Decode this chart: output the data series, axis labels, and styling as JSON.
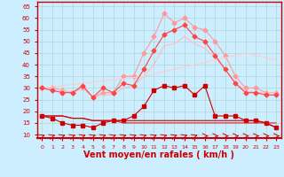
{
  "background_color": "#cceeff",
  "grid_color": "#aacccc",
  "xlabel": "Vent moyen/en rafales ( km/h )",
  "xlabel_color": "#cc0000",
  "xlabel_fontsize": 7,
  "yticks": [
    10,
    15,
    20,
    25,
    30,
    35,
    40,
    45,
    50,
    55,
    60,
    65
  ],
  "xticks": [
    0,
    1,
    2,
    3,
    4,
    5,
    6,
    7,
    8,
    9,
    10,
    11,
    12,
    13,
    14,
    15,
    16,
    17,
    18,
    19,
    20,
    21,
    22,
    23
  ],
  "ylim": [
    8.5,
    67
  ],
  "xlim": [
    -0.5,
    23.5
  ],
  "pink_rafales": [
    30,
    30,
    29,
    28,
    30,
    26,
    28,
    28,
    35,
    35,
    45,
    52,
    62,
    58,
    60,
    56,
    55,
    50,
    44,
    35,
    30,
    30,
    28,
    28
  ],
  "pink_linear": [
    30,
    30.5,
    31,
    31.5,
    32,
    32.5,
    33,
    33.5,
    34,
    34.5,
    35,
    36,
    37,
    38,
    39,
    40,
    41,
    42,
    43,
    44,
    45,
    44,
    43,
    42
  ],
  "pink_moyen": [
    30,
    30,
    29,
    28,
    30,
    26,
    27,
    27,
    30,
    31,
    35,
    40,
    48,
    49,
    52,
    49,
    47,
    43,
    38,
    32,
    29,
    28,
    28,
    28
  ],
  "red_moyen": [
    18,
    17,
    15,
    14,
    14,
    13,
    15,
    16,
    16,
    18,
    22,
    29,
    31,
    30,
    31,
    27,
    31,
    18,
    18,
    18,
    16,
    16,
    15,
    13
  ],
  "red_linear1": [
    18,
    18,
    18,
    17,
    17,
    16,
    16,
    16,
    15,
    15,
    15,
    15,
    15,
    15,
    15,
    15,
    15,
    15,
    15,
    15,
    15,
    15,
    15,
    15
  ],
  "red_linear2": [
    18,
    18,
    18,
    17,
    17,
    16,
    16,
    16,
    16,
    16,
    16,
    16,
    16,
    16,
    16,
    16,
    16,
    16,
    16,
    16,
    16,
    16,
    15,
    13
  ],
  "red_rafales": [
    30,
    29,
    28,
    28,
    31,
    26,
    30,
    28,
    32,
    31,
    38,
    46,
    53,
    55,
    57,
    52,
    50,
    44,
    38,
    32,
    28,
    28,
    27,
    27
  ],
  "arrows_diagonal_count": 16,
  "arrow_color": "#cc0000",
  "spine_color": "#cc0000",
  "tick_color": "#cc0000"
}
